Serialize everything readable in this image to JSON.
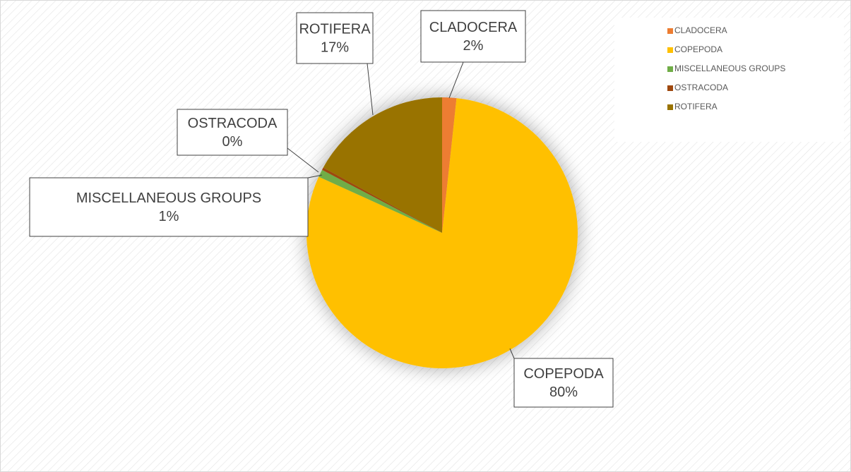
{
  "chart_data": {
    "type": "pie",
    "categories": [
      "CLADOCERA",
      "COPEPODA",
      "MISCELLANEOUS GROUPS",
      "OSTRACODA",
      "ROTIFERA"
    ],
    "values": [
      1.7,
      80.1,
      0.9,
      0.3,
      17.0
    ],
    "value_labels": [
      "2%",
      "80%",
      "1%",
      "0%",
      "17%"
    ],
    "colors": [
      "#ED7D31",
      "#FFC000",
      "#70AD47",
      "#9E480E",
      "#997300"
    ],
    "legend": "top-right"
  }
}
